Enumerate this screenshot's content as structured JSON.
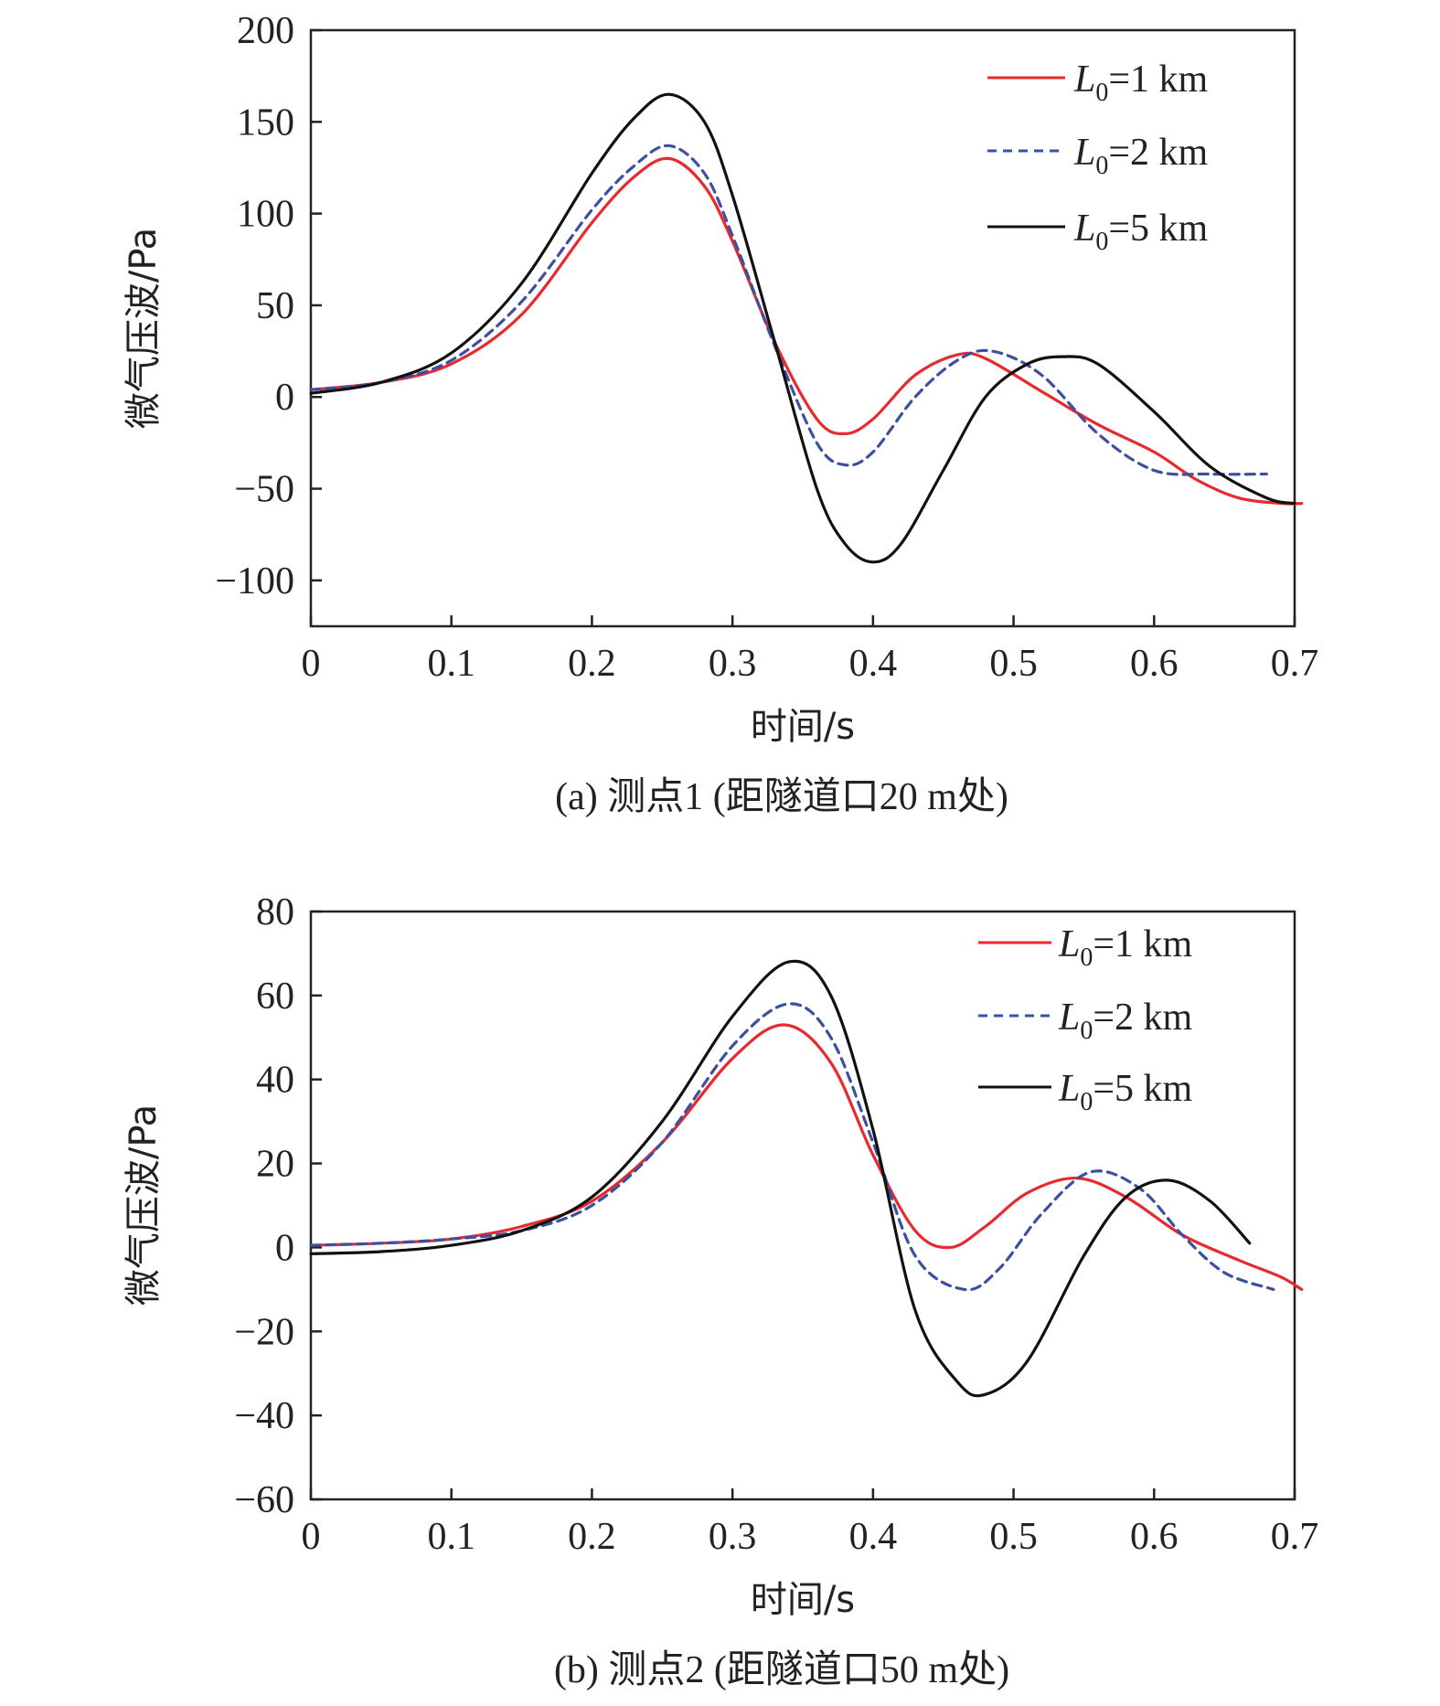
{
  "chart_data": [
    {
      "id": "a",
      "type": "line",
      "caption": "(a) 测点1 (距隧道口20 m处)",
      "xlabel": "时间/s",
      "ylabel": "微气压波/Pa",
      "xlim": [
        0,
        0.7
      ],
      "ylim": [
        -125,
        200
      ],
      "xticks": [
        0,
        0.1,
        0.2,
        0.3,
        0.4,
        0.5,
        0.6,
        0.7
      ],
      "xtick_labels": [
        "0",
        "0.1",
        "0.2",
        "0.3",
        "0.4",
        "0.5",
        "0.6",
        "0.7"
      ],
      "yticks": [
        200,
        150,
        100,
        50,
        0,
        -50,
        -100
      ],
      "ytick_labels": [
        "200",
        "150",
        "100",
        "50",
        "0",
        "−50",
        "−100"
      ],
      "legend": {
        "placement": "top-right"
      },
      "series": [
        {
          "name": "L0=1 km",
          "legend_main": "L",
          "legend_sub": "0",
          "legend_rest": "=1 km",
          "color": "#e8292e",
          "dash": "solid",
          "x": [
            0,
            0.05,
            0.1,
            0.15,
            0.2,
            0.23,
            0.255,
            0.28,
            0.3,
            0.33,
            0.36,
            0.38,
            0.4,
            0.43,
            0.46,
            0.48,
            0.52,
            0.56,
            0.6,
            0.63,
            0.66,
            0.69,
            0.705
          ],
          "y": [
            4,
            8,
            18,
            45,
            95,
            120,
            130,
            115,
            85,
            30,
            -12,
            -20,
            -12,
            12,
            23,
            21,
            3,
            -15,
            -30,
            -45,
            -55,
            -58,
            -58
          ]
        },
        {
          "name": "L0=2 km",
          "legend_main": "L",
          "legend_sub": "0",
          "legend_rest": "=2 km",
          "color": "#3c4fa0",
          "dash": "10,7",
          "x": [
            0,
            0.05,
            0.1,
            0.15,
            0.2,
            0.23,
            0.255,
            0.28,
            0.3,
            0.33,
            0.36,
            0.38,
            0.4,
            0.43,
            0.46,
            0.485,
            0.52,
            0.56,
            0.6,
            0.64,
            0.68
          ],
          "y": [
            4,
            8,
            20,
            52,
            102,
            126,
            137,
            122,
            88,
            28,
            -25,
            -37,
            -30,
            0,
            20,
            25,
            12,
            -20,
            -40,
            -42,
            -42
          ]
        },
        {
          "name": "L0=5 km",
          "legend_main": "L",
          "legend_sub": "0",
          "legend_rest": "=5 km",
          "color": "#111111",
          "dash": "solid",
          "x": [
            0,
            0.05,
            0.1,
            0.15,
            0.2,
            0.23,
            0.255,
            0.28,
            0.3,
            0.33,
            0.36,
            0.38,
            0.4,
            0.42,
            0.45,
            0.48,
            0.51,
            0.535,
            0.56,
            0.6,
            0.64,
            0.68,
            0.7
          ],
          "y": [
            2,
            8,
            24,
            62,
            122,
            152,
            165,
            150,
            110,
            30,
            -50,
            -80,
            -90,
            -80,
            -40,
            0,
            18,
            22,
            18,
            -8,
            -38,
            -55,
            -58
          ]
        }
      ]
    },
    {
      "id": "b",
      "type": "line",
      "caption": "(b) 测点2 (距隧道口50 m处)",
      "xlabel": "时间/s",
      "ylabel": "微气压波/Pa",
      "xlim": [
        0,
        0.7
      ],
      "ylim": [
        -60,
        80
      ],
      "xticks": [
        0,
        0.1,
        0.2,
        0.3,
        0.4,
        0.5,
        0.6,
        0.7
      ],
      "xtick_labels": [
        "0",
        "0.1",
        "0.2",
        "0.3",
        "0.4",
        "0.5",
        "0.6",
        "0.7"
      ],
      "yticks": [
        80,
        60,
        40,
        20,
        0,
        -20,
        -40,
        -60
      ],
      "ytick_labels": [
        "80",
        "60",
        "40",
        "20",
        "0",
        "−20",
        "−40",
        "−60"
      ],
      "legend": {
        "placement": "top-right"
      },
      "series": [
        {
          "name": "L0=1 km",
          "legend_main": "L",
          "legend_sub": "0",
          "legend_rest": "=1 km",
          "color": "#e8292e",
          "dash": "solid",
          "x": [
            0,
            0.05,
            0.1,
            0.15,
            0.2,
            0.25,
            0.3,
            0.337,
            0.37,
            0.4,
            0.43,
            0.455,
            0.48,
            0.51,
            0.545,
            0.58,
            0.62,
            0.66,
            0.69,
            0.705
          ],
          "y": [
            0.5,
            1,
            2,
            5,
            11,
            25,
            45,
            53,
            44,
            22,
            4,
            0,
            5,
            13,
            16.5,
            12,
            3,
            -3,
            -7,
            -10
          ]
        },
        {
          "name": "L0=2 km",
          "legend_main": "L",
          "legend_sub": "0",
          "legend_rest": "=2 km",
          "color": "#3c4fa0",
          "dash": "10,7",
          "x": [
            0,
            0.05,
            0.1,
            0.15,
            0.2,
            0.25,
            0.3,
            0.34,
            0.37,
            0.4,
            0.43,
            0.465,
            0.49,
            0.52,
            0.555,
            0.59,
            0.62,
            0.65,
            0.685
          ],
          "y": [
            0.5,
            1,
            2,
            4,
            10,
            25,
            48,
            58,
            50,
            25,
            -2,
            -10,
            -5,
            8,
            18,
            14,
            3,
            -6,
            -10
          ]
        },
        {
          "name": "L0=5 km",
          "legend_main": "L",
          "legend_sub": "0",
          "legend_rest": "=5 km",
          "color": "#111111",
          "dash": "solid",
          "x": [
            0,
            0.05,
            0.1,
            0.15,
            0.2,
            0.25,
            0.3,
            0.34,
            0.37,
            0.4,
            0.43,
            0.46,
            0.48,
            0.51,
            0.55,
            0.58,
            0.61,
            0.64,
            0.668
          ],
          "y": [
            -1.5,
            -1,
            0.5,
            4,
            12,
            30,
            55,
            68,
            60,
            28,
            -15,
            -32,
            -35,
            -27,
            -2,
            12,
            16,
            11,
            1
          ]
        }
      ]
    }
  ]
}
